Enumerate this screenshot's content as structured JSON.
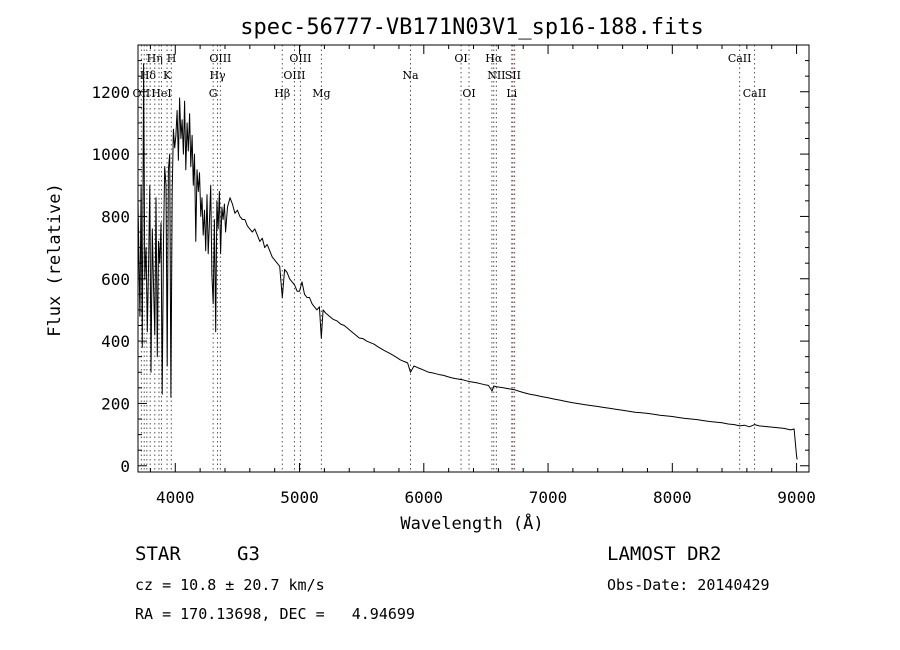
{
  "chart_data": {
    "type": "line",
    "title": "spec-56777-VB171N03V1_sp16-188.fits",
    "xlabel": "Wavelength (Å)",
    "ylabel": "Flux (relative)",
    "xlim": [
      3700,
      9100
    ],
    "ylim": [
      -20,
      1350
    ],
    "x_ticks": [
      4000,
      5000,
      6000,
      7000,
      8000,
      9000
    ],
    "x_tick_labels": [
      "4000",
      "5000",
      "6000",
      "7000",
      "8000",
      "9000"
    ],
    "y_ticks": [
      0,
      200,
      400,
      600,
      800,
      1000,
      1200
    ],
    "y_tick_labels": [
      "0",
      "200",
      "400",
      "600",
      "800",
      "1000",
      "1200"
    ],
    "grid": false,
    "series": [
      {
        "name": "spectrum",
        "x": [
          3700,
          3715,
          3725,
          3735,
          3745,
          3755,
          3765,
          3775,
          3785,
          3795,
          3805,
          3815,
          3825,
          3835,
          3845,
          3855,
          3865,
          3875,
          3885,
          3895,
          3905,
          3915,
          3925,
          3935,
          3945,
          3955,
          3965,
          3975,
          3985,
          3995,
          4005,
          4015,
          4025,
          4035,
          4045,
          4055,
          4065,
          4075,
          4085,
          4095,
          4105,
          4115,
          4125,
          4135,
          4145,
          4155,
          4165,
          4175,
          4185,
          4195,
          4205,
          4215,
          4225,
          4235,
          4245,
          4255,
          4265,
          4275,
          4285,
          4295,
          4305,
          4315,
          4325,
          4335,
          4345,
          4355,
          4365,
          4375,
          4385,
          4395,
          4405,
          4420,
          4440,
          4460,
          4480,
          4500,
          4520,
          4540,
          4560,
          4580,
          4600,
          4620,
          4640,
          4660,
          4680,
          4700,
          4720,
          4740,
          4760,
          4780,
          4800,
          4820,
          4840,
          4861,
          4880,
          4900,
          4920,
          4940,
          4960,
          4980,
          5000,
          5020,
          5040,
          5060,
          5080,
          5100,
          5120,
          5140,
          5160,
          5175,
          5190,
          5210,
          5240,
          5270,
          5300,
          5330,
          5360,
          5390,
          5420,
          5450,
          5480,
          5510,
          5540,
          5570,
          5600,
          5630,
          5660,
          5690,
          5720,
          5750,
          5780,
          5810,
          5840,
          5870,
          5893,
          5920,
          5950,
          5980,
          6010,
          6040,
          6070,
          6100,
          6130,
          6160,
          6190,
          6220,
          6250,
          6280,
          6310,
          6340,
          6370,
          6400,
          6430,
          6460,
          6490,
          6520,
          6550,
          6563,
          6580,
          6610,
          6640,
          6670,
          6700,
          6730,
          6760,
          6800,
          6850,
          6900,
          6950,
          7000,
          7050,
          7100,
          7150,
          7200,
          7250,
          7300,
          7350,
          7400,
          7450,
          7500,
          7550,
          7600,
          7650,
          7700,
          7750,
          7800,
          7850,
          7900,
          7950,
          8000,
          8050,
          8100,
          8150,
          8200,
          8250,
          8300,
          8350,
          8400,
          8450,
          8500,
          8542,
          8580,
          8620,
          8662,
          8700,
          8750,
          8800,
          8850,
          8900,
          8950,
          8980,
          9000,
          9005
        ],
        "values": [
          850,
          480,
          900,
          380,
          1290,
          600,
          700,
          430,
          650,
          900,
          300,
          760,
          580,
          420,
          860,
          350,
          720,
          650,
          780,
          230,
          720,
          960,
          900,
          320,
          950,
          1000,
          220,
          880,
          1080,
          1020,
          1060,
          1140,
          980,
          1180,
          1050,
          1110,
          1000,
          1170,
          950,
          1100,
          1010,
          1130,
          960,
          1060,
          900,
          1000,
          720,
          950,
          880,
          940,
          800,
          860,
          740,
          820,
          690,
          870,
          680,
          780,
          900,
          610,
          520,
          790,
          430,
          850,
          760,
          880,
          680,
          830,
          790,
          840,
          750,
          830,
          860,
          840,
          810,
          820,
          800,
          790,
          790,
          770,
          760,
          750,
          760,
          740,
          720,
          730,
          700,
          710,
          690,
          670,
          660,
          650,
          640,
          540,
          630,
          620,
          600,
          590,
          580,
          560,
          560,
          590,
          550,
          540,
          540,
          520,
          510,
          500,
          510,
          410,
          500,
          490,
          480,
          470,
          465,
          455,
          450,
          440,
          430,
          420,
          410,
          408,
          400,
          395,
          390,
          382,
          375,
          368,
          362,
          355,
          348,
          340,
          335,
          330,
          300,
          320,
          315,
          310,
          305,
          300,
          298,
          295,
          292,
          290,
          286,
          283,
          280,
          278,
          276,
          273,
          270,
          268,
          266,
          263,
          260,
          258,
          240,
          256,
          254,
          252,
          250,
          248,
          246,
          244,
          240,
          235,
          230,
          226,
          222,
          218,
          214,
          210,
          206,
          202,
          199,
          196,
          193,
          190,
          187,
          184,
          181,
          178,
          175,
          172,
          170,
          168,
          165,
          162,
          160,
          158,
          155,
          152,
          150,
          148,
          145,
          142,
          140,
          138,
          134,
          132,
          128,
          130,
          125,
          132,
          128,
          126,
          124,
          122,
          120,
          115,
          118,
          30,
          20
        ]
      }
    ],
    "reference_lines": [
      {
        "wavelength": 3727,
        "color": "#555555"
      },
      {
        "wavelength": 3750,
        "color": "#555555"
      },
      {
        "wavelength": 3771,
        "color": "#555555"
      },
      {
        "wavelength": 3798,
        "color": "#555555"
      },
      {
        "wavelength": 3835,
        "color": "#555555"
      },
      {
        "wavelength": 3869,
        "color": "#555555"
      },
      {
        "wavelength": 3889,
        "color": "#555555"
      },
      {
        "wavelength": 3934,
        "color": "#555555"
      },
      {
        "wavelength": 3968,
        "color": "#555555"
      },
      {
        "wavelength": 4305,
        "color": "#555555"
      },
      {
        "wavelength": 4340,
        "color": "#555555"
      },
      {
        "wavelength": 4363,
        "color": "#555555"
      },
      {
        "wavelength": 4861,
        "color": "#555555"
      },
      {
        "wavelength": 4959,
        "color": "#555555"
      },
      {
        "wavelength": 5007,
        "color": "#555555"
      },
      {
        "wavelength": 5176,
        "color": "#555555"
      },
      {
        "wavelength": 5893,
        "color": "#555555"
      },
      {
        "wavelength": 6300,
        "color": "#555555"
      },
      {
        "wavelength": 6364,
        "color": "#555555"
      },
      {
        "wavelength": 6548,
        "color": "#555555"
      },
      {
        "wavelength": 6563,
        "color": "#555555"
      },
      {
        "wavelength": 6584,
        "color": "#555555"
      },
      {
        "wavelength": 6708,
        "color": "#dd2222"
      },
      {
        "wavelength": 6717,
        "color": "#555555"
      },
      {
        "wavelength": 6731,
        "color": "#555555"
      },
      {
        "wavelength": 8542,
        "color": "#555555"
      },
      {
        "wavelength": 8662,
        "color": "#555555"
      }
    ],
    "line_labels": [
      {
        "text": "Hη",
        "wavelength": 3835,
        "row": 1
      },
      {
        "text": "H",
        "wavelength": 3970,
        "row": 1
      },
      {
        "text": "OIII",
        "wavelength": 4363,
        "row": 1
      },
      {
        "text": "OIII",
        "wavelength": 5007,
        "row": 1
      },
      {
        "text": "OI",
        "wavelength": 6300,
        "row": 1
      },
      {
        "text": "Hα",
        "wavelength": 6563,
        "row": 1
      },
      {
        "text": "CaII",
        "wavelength": 8542,
        "row": 1
      },
      {
        "text": "Hδ",
        "wavelength": 3780,
        "row": 2
      },
      {
        "text": "K",
        "wavelength": 3934,
        "row": 2
      },
      {
        "text": "Hγ",
        "wavelength": 4340,
        "row": 2
      },
      {
        "text": "OIII",
        "wavelength": 4959,
        "row": 2
      },
      {
        "text": "Na",
        "wavelength": 5893,
        "row": 2
      },
      {
        "text": "NII",
        "wavelength": 6584,
        "row": 2
      },
      {
        "text": "SII",
        "wavelength": 6717,
        "row": 2
      },
      {
        "text": "OII",
        "wavelength": 3727,
        "row": 3
      },
      {
        "text": "HeI",
        "wavelength": 3889,
        "row": 3
      },
      {
        "text": "G",
        "wavelength": 4305,
        "row": 3
      },
      {
        "text": "Hβ",
        "wavelength": 4861,
        "row": 3
      },
      {
        "text": "Mg",
        "wavelength": 5176,
        "row": 3
      },
      {
        "text": "OI",
        "wavelength": 6364,
        "row": 3
      },
      {
        "text": "Li",
        "wavelength": 6708,
        "row": 3
      },
      {
        "text": "CaII",
        "wavelength": 8662,
        "row": 3
      }
    ]
  },
  "info": {
    "object_class": "STAR",
    "subclass": "G3",
    "survey": "LAMOST DR2",
    "redshift": "cz = 10.8 ± 20.7 km/s",
    "obs_date": "Obs-Date: 20140429",
    "coords": "RA = 170.13698, DEC =   4.94699"
  }
}
